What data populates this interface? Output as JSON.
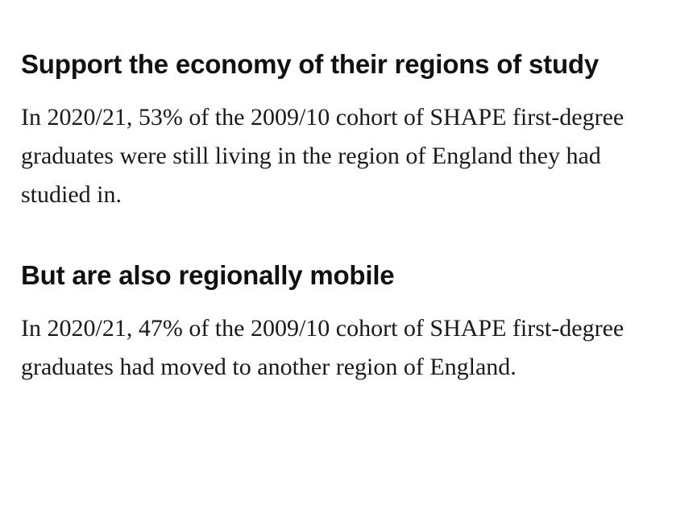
{
  "sections": [
    {
      "heading": "Support the economy of their regions of study",
      "body": "In 2020/21, 53% of the 2009/10 cohort of SHAPE first-degree graduates were still living in the region of England they had studied in."
    },
    {
      "heading": "But are also regionally mobile",
      "body": "In 2020/21, 47% of the 2009/10 cohort of SHAPE first-degree graduates had moved to another region of England."
    }
  ]
}
